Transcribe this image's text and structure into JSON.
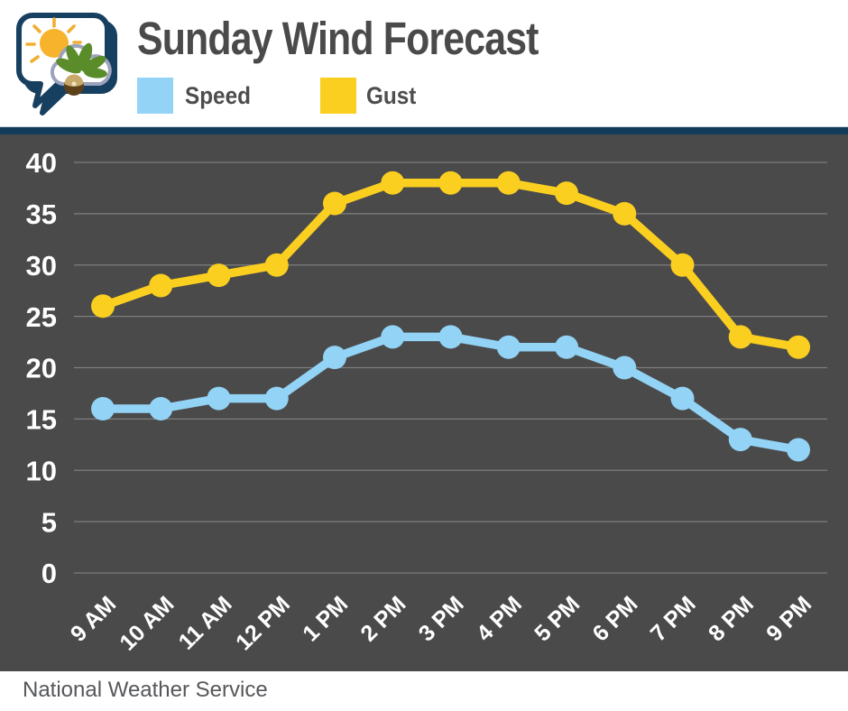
{
  "header": {
    "title": "Sunday Wind Forecast",
    "legend": [
      {
        "label": "Speed",
        "color": "#93d3f5"
      },
      {
        "label": "Gust",
        "color": "#fbcf20"
      }
    ]
  },
  "footer": {
    "source": "National Weather Service"
  },
  "colors": {
    "chart_background": "#4a4a4a",
    "divider_bar": "#123c59",
    "gridline": "#7e7e7e",
    "axis_text": "#ffffff",
    "title_text": "#4a4a4a",
    "speed_line": "#93d3f5",
    "gust_line": "#fbcf20"
  },
  "chart_data": {
    "type": "line",
    "title": "Sunday Wind Forecast",
    "categories": [
      "9 AM",
      "10 AM",
      "11 AM",
      "12 PM",
      "1 PM",
      "2 PM",
      "3 PM",
      "4 PM",
      "5 PM",
      "6 PM",
      "7 PM",
      "8 PM",
      "9 PM"
    ],
    "series": [
      {
        "name": "Speed",
        "color": "#93d3f5",
        "values": [
          16,
          16,
          17,
          17,
          21,
          23,
          23,
          22,
          22,
          20,
          17,
          13,
          12
        ]
      },
      {
        "name": "Gust",
        "color": "#fbcf20",
        "values": [
          26,
          28,
          29,
          30,
          36,
          38,
          38,
          38,
          37,
          35,
          30,
          23,
          22
        ]
      }
    ],
    "xlabel": "",
    "ylabel": "",
    "ylim": [
      0,
      40
    ],
    "yticks": [
      0,
      5,
      10,
      15,
      20,
      25,
      30,
      35,
      40
    ],
    "grid": true,
    "legend_position": "top",
    "source": "National Weather Service"
  }
}
